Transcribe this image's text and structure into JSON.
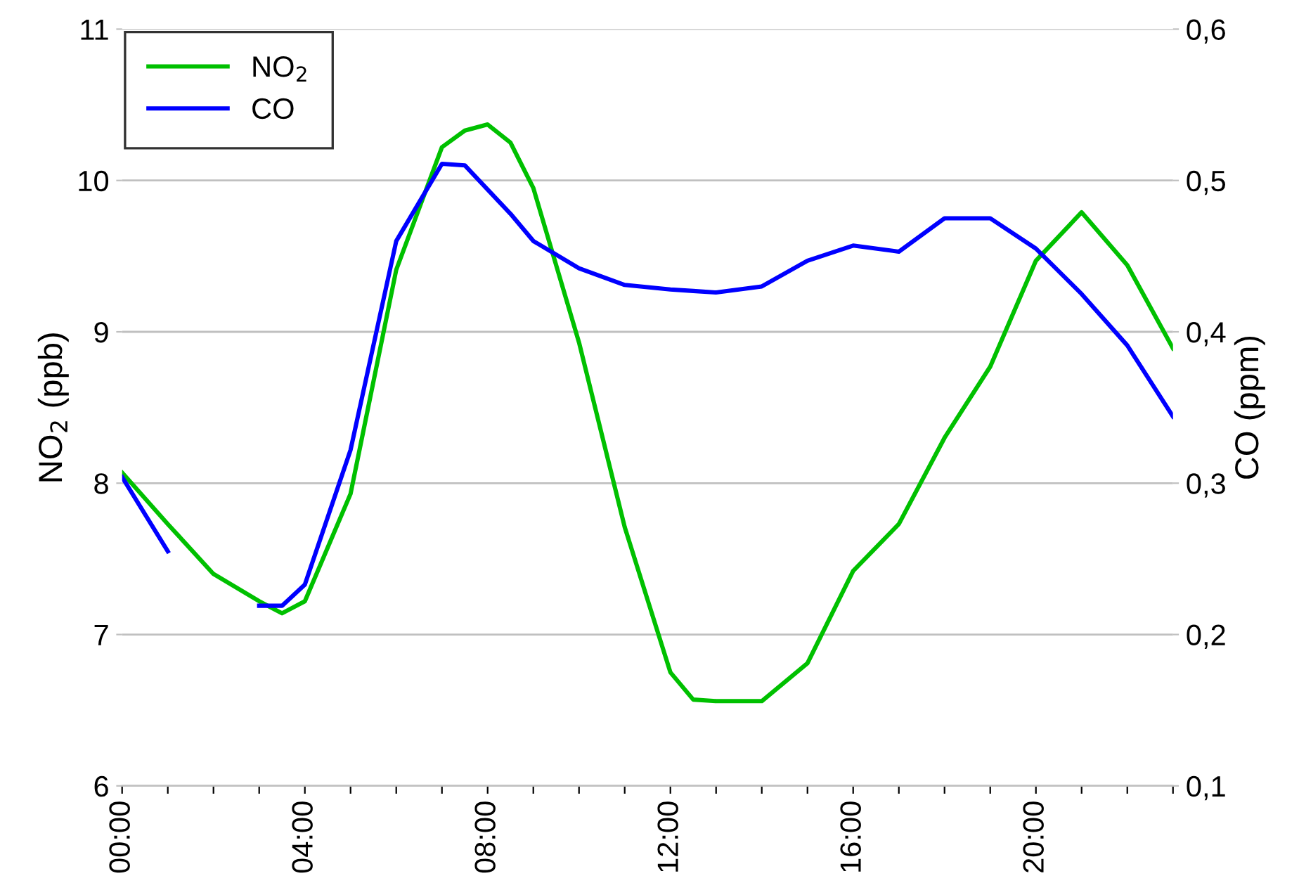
{
  "chart_data": {
    "type": "line",
    "xlabel": null,
    "ylabel": "NO$_{2}$ (ppb)",
    "y2label": "CO (ppm)",
    "x": [
      0,
      1,
      2,
      3,
      3.5,
      4,
      5,
      6,
      7,
      7.5,
      8,
      8.5,
      9,
      10,
      11,
      12,
      12.5,
      13,
      14,
      15,
      16,
      17,
      18,
      19,
      20,
      21,
      22,
      23
    ],
    "series": [
      {
        "name": "NO$_{2}$",
        "color": "#00c000",
        "values": [
          8.07,
          7.73,
          7.4,
          7.22,
          7.14,
          7.22,
          7.93,
          9.41,
          10.22,
          10.33,
          10.37,
          10.25,
          9.95,
          8.93,
          7.71,
          6.75,
          6.57,
          6.56,
          6.56,
          6.81,
          7.42,
          7.73,
          8.3,
          8.77,
          9.47,
          9.79,
          9.44,
          8.89
        ]
      },
      {
        "name": "CO",
        "color": "#0000ff",
        "axis": "y2",
        "values": [
          0.304,
          0.255,
          null,
          0.219,
          0.219,
          0.233,
          0.322,
          0.46,
          0.511,
          0.51,
          0.494,
          0.478,
          0.46,
          0.442,
          0.431,
          0.428,
          0.427,
          0.426,
          0.43,
          0.447,
          0.457,
          0.453,
          0.475,
          0.475,
          0.455,
          0.425,
          0.391,
          0.344
        ]
      }
    ],
    "xlim": [
      0,
      23
    ],
    "xticks": [
      {
        "value": 0,
        "label": "00:00"
      },
      {
        "value": 1,
        "label": null
      },
      {
        "value": 2,
        "label": null
      },
      {
        "value": 3,
        "label": null
      },
      {
        "value": 4,
        "label": "04:00"
      },
      {
        "value": 5,
        "label": null
      },
      {
        "value": 6,
        "label": null
      },
      {
        "value": 7,
        "label": null
      },
      {
        "value": 8,
        "label": "08:00"
      },
      {
        "value": 9,
        "label": null
      },
      {
        "value": 10,
        "label": null
      },
      {
        "value": 11,
        "label": null
      },
      {
        "value": 12,
        "label": "12:00"
      },
      {
        "value": 13,
        "label": null
      },
      {
        "value": 14,
        "label": null
      },
      {
        "value": 15,
        "label": null
      },
      {
        "value": 16,
        "label": "16:00"
      },
      {
        "value": 17,
        "label": null
      },
      {
        "value": 18,
        "label": null
      },
      {
        "value": 19,
        "label": null
      },
      {
        "value": 20,
        "label": "20:00"
      },
      {
        "value": 21,
        "label": null
      },
      {
        "value": 22,
        "label": null
      },
      {
        "value": 23,
        "label": null
      }
    ],
    "ylim": [
      6,
      11
    ],
    "yticks": [
      6,
      7,
      8,
      9,
      10,
      11
    ],
    "y2lim": [
      0.1,
      0.6
    ],
    "y2ticks": [
      {
        "value": 0.1,
        "label": "0,1"
      },
      {
        "value": 0.2,
        "label": "0,2"
      },
      {
        "value": 0.3,
        "label": "0,3"
      },
      {
        "value": 0.4,
        "label": "0,4"
      },
      {
        "value": 0.5,
        "label": "0,5"
      },
      {
        "value": 0.6,
        "label": "0,6"
      }
    ],
    "grid": "y",
    "legend": "top left",
    "marker": "none",
    "line_style": "solid"
  }
}
